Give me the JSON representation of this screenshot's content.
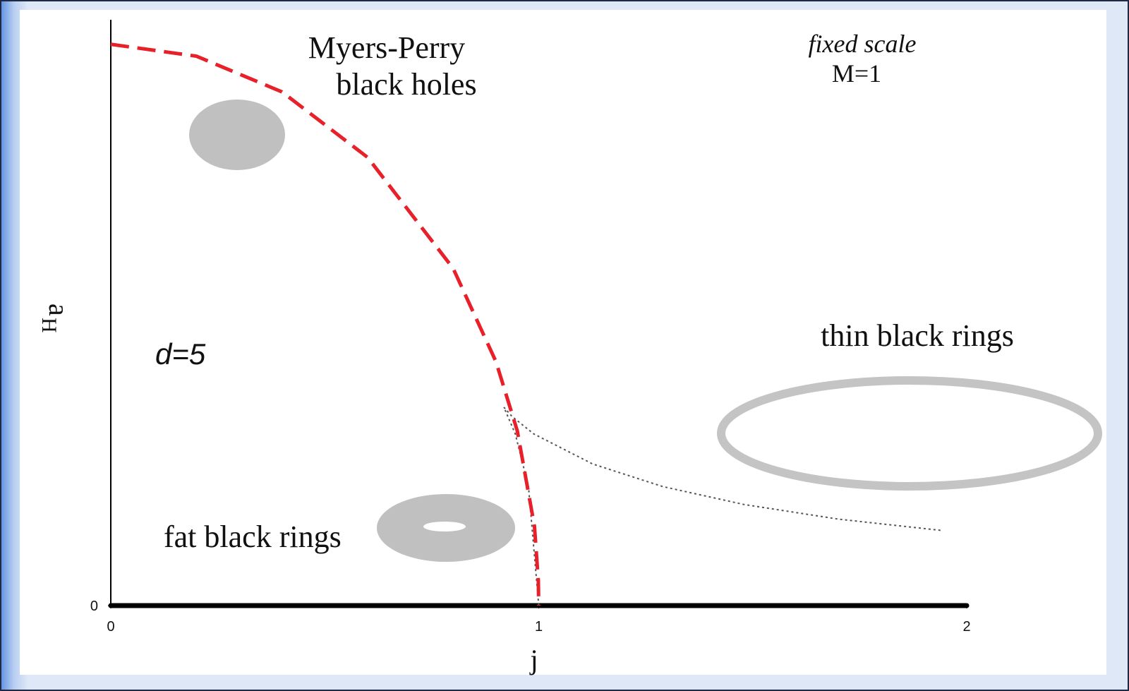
{
  "chart_data": {
    "type": "line",
    "xlabel": "j",
    "ylabel": "a",
    "ylabel_subscript": "H",
    "xlim": [
      0,
      2
    ],
    "ylim": [
      0,
      2.95
    ],
    "xticks": [
      0,
      1,
      2
    ],
    "yticks": [
      0
    ],
    "annotations": {
      "myers_perry_1": "Myers-Perry",
      "myers_perry_2": "black holes",
      "fixed_scale": "fixed scale",
      "mass": "M=1",
      "dimension": "d=5",
      "thin_rings": "thin black rings",
      "fat_rings": "fat black rings"
    },
    "series": [
      {
        "color": "#000000",
        "style": "thick",
        "x": [
          0,
          2
        ],
        "values": [
          0,
          0
        ]
      },
      {
        "color": "#555555",
        "style": "dotted",
        "x": [
          1,
          0.976,
          0.9451,
          0.9186,
          0.9374,
          0.988,
          1.126,
          1.29,
          1.479,
          1.7,
          1.945
        ],
        "values": [
          0,
          0.6,
          0.866,
          1.0,
          0.954,
          0.866,
          0.714,
          0.6,
          0.51,
          0.436,
          0.378
        ]
      },
      {
        "color": "#e8202a",
        "style": "dashed",
        "x": [
          0,
          0.2,
          0.4,
          0.6,
          0.8,
          0.9,
          0.95,
          0.99,
          0.999,
          1
        ],
        "values": [
          2.83,
          2.77,
          2.59,
          2.26,
          1.7,
          1.23,
          0.88,
          0.4,
          0.126,
          0
        ]
      }
    ]
  }
}
